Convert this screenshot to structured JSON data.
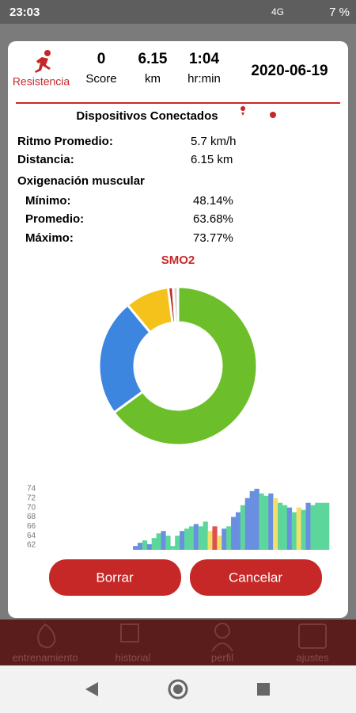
{
  "status_bar": {
    "time": "23:03",
    "network": "4G",
    "battery": "7 %"
  },
  "header": {
    "mode": "Resistencia",
    "score_value": "0",
    "score_label": "Score",
    "distance_value": "6.15",
    "distance_label": "km",
    "time_value": "1:04",
    "time_label": "hr:min",
    "date": "2020-06-19"
  },
  "devices_title": "Dispositivos Conectados",
  "stats": {
    "pace_label": "Ritmo Promedio:",
    "pace_value": "5.7 km/h",
    "distance_label": "Distancia:",
    "distance_value": "6.15 km",
    "oxygen_title": "Oxigenación muscular",
    "rows": [
      {
        "label": "Mínimo:",
        "value": "48.14%"
      },
      {
        "label": "Promedio:",
        "value": "63.68%"
      },
      {
        "label": "Máximo:",
        "value": "73.77%"
      }
    ]
  },
  "donut": {
    "title": "SMO2",
    "segments": [
      {
        "value": 65,
        "color": "#6cbf2a"
      },
      {
        "value": 24,
        "color": "#3d86e0"
      },
      {
        "value": 9,
        "color": "#f5c21b"
      },
      {
        "value": 1,
        "color": "#c62828"
      },
      {
        "value": 1,
        "color": "#d8d8d8"
      }
    ]
  },
  "area_chart": {
    "type": "bar",
    "ylim": [
      61,
      75
    ],
    "yticks": [
      62,
      64,
      66,
      68,
      70,
      72,
      74
    ],
    "values": [
      null,
      null,
      null,
      null,
      null,
      null,
      null,
      null,
      null,
      null,
      null,
      null,
      null,
      null,
      null,
      null,
      null,
      null,
      null,
      null,
      61.8,
      62.5,
      63,
      62.2,
      63.5,
      64.5,
      65,
      64,
      61.8,
      64,
      65,
      65.5,
      66,
      66.5,
      66,
      67,
      65,
      66,
      64,
      65.5,
      66,
      68,
      69,
      70.5,
      72,
      73.5,
      74,
      73,
      72.5,
      73,
      72,
      71,
      70.5,
      70,
      69,
      70,
      69.5,
      71,
      70.5,
      71,
      71,
      71
    ],
    "colors": [
      null,
      null,
      null,
      null,
      null,
      null,
      null,
      null,
      null,
      null,
      null,
      null,
      null,
      null,
      null,
      null,
      null,
      null,
      null,
      null,
      "#6a8fe0",
      "#6a8fe0",
      "#5cd69b",
      "#6a8fe0",
      "#5cd69b",
      "#5cd69b",
      "#6a8fe0",
      "#5cd69b",
      "#5cd69b",
      "#5cd69b",
      "#6a8fe0",
      "#5cd69b",
      "#5cd69b",
      "#6a8fe0",
      "#5cd69b",
      "#5cd69b",
      "#f2e06a",
      "#e05050",
      "#f2e06a",
      "#6a8fe0",
      "#5cd69b",
      "#6a8fe0",
      "#6a8fe0",
      "#5cd69b",
      "#6a8fe0",
      "#6a8fe0",
      "#6a8fe0",
      "#5cd69b",
      "#5cd69b",
      "#6a8fe0",
      "#f2e06a",
      "#5cd69b",
      "#5cd69b",
      "#6a8fe0",
      "#5cd69b",
      "#f2e06a",
      "#5cd69b",
      "#6a8fe0",
      "#5cd69b",
      "#5cd69b",
      "#5cd69b",
      "#5cd69b"
    ]
  },
  "buttons": {
    "delete": "Borrar",
    "cancel": "Cancelar"
  },
  "nav": [
    "entrenamiento",
    "historial",
    "perfil",
    "ajustes"
  ]
}
